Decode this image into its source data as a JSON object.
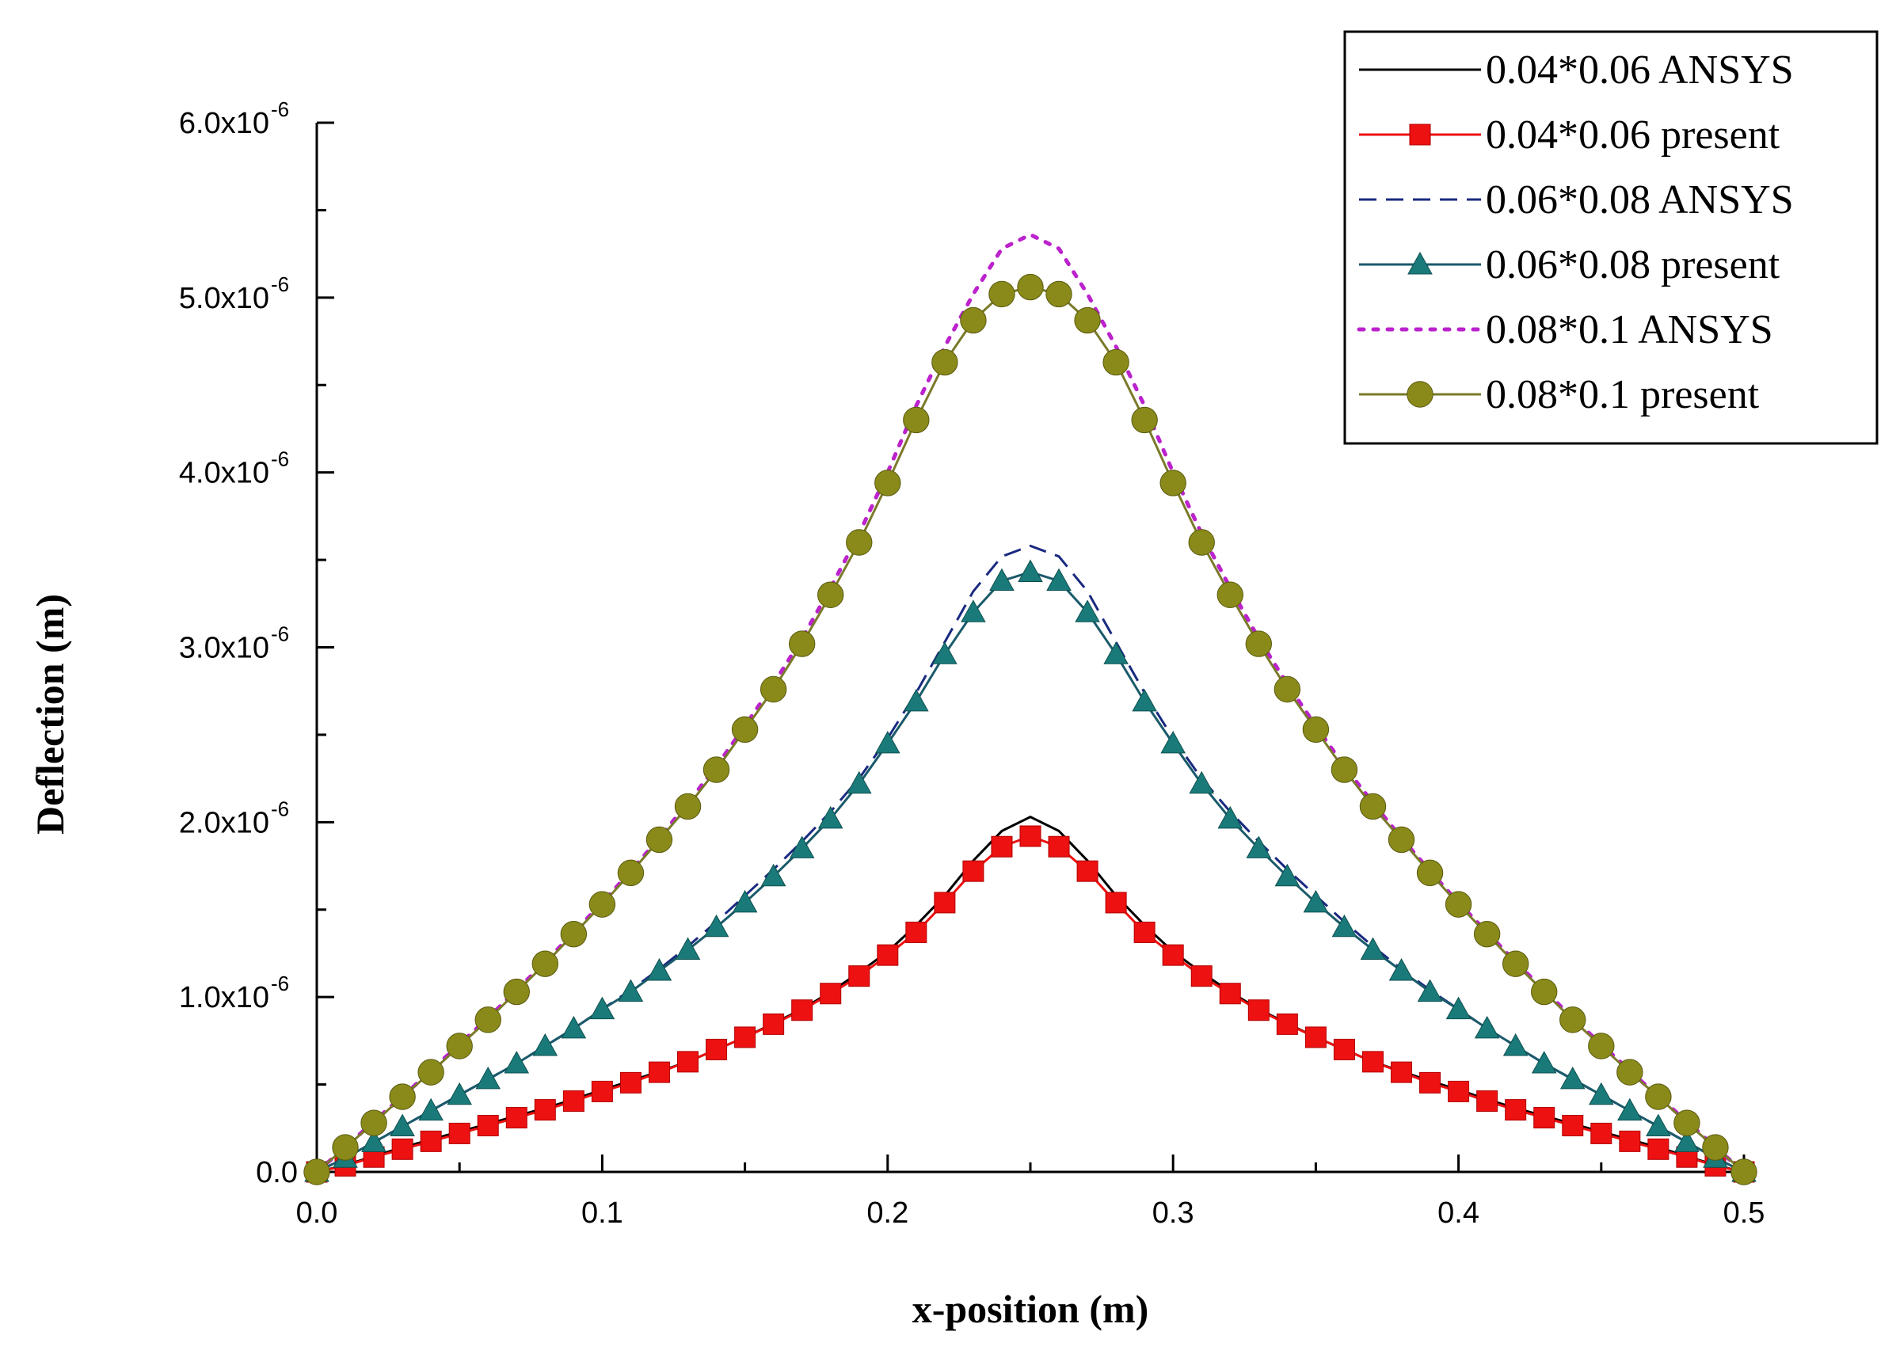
{
  "chart_data": {
    "type": "line",
    "title": "",
    "xlabel": "x-position (m)",
    "ylabel": "Deflection (m)",
    "xlim": [
      0.0,
      0.5
    ],
    "ylim": [
      0.0,
      6e-06
    ],
    "x_ticks": [
      {
        "value": 0.0,
        "label": "0.0"
      },
      {
        "value": 0.1,
        "label": "0.1"
      },
      {
        "value": 0.2,
        "label": "0.2"
      },
      {
        "value": 0.3,
        "label": "0.3"
      },
      {
        "value": 0.4,
        "label": "0.4"
      },
      {
        "value": 0.5,
        "label": "0.5"
      }
    ],
    "y_ticks": [
      {
        "value": 0.0,
        "mantissa": "0.0",
        "exp": ""
      },
      {
        "value": 1e-06,
        "mantissa": "1.0x10",
        "exp": "-6"
      },
      {
        "value": 2e-06,
        "mantissa": "2.0x10",
        "exp": "-6"
      },
      {
        "value": 3e-06,
        "mantissa": "3.0x10",
        "exp": "-6"
      },
      {
        "value": 4e-06,
        "mantissa": "4.0x10",
        "exp": "-6"
      },
      {
        "value": 5e-06,
        "mantissa": "5.0x10",
        "exp": "-6"
      },
      {
        "value": 6e-06,
        "mantissa": "6.0x10",
        "exp": "-6"
      }
    ],
    "grid": false,
    "legend_position": "top-right",
    "series": [
      {
        "name": "0.04*0.06 ANSYS",
        "style": {
          "line": "solid",
          "marker": "none",
          "color": "#000000"
        },
        "x": [
          0.0,
          0.01,
          0.02,
          0.03,
          0.04,
          0.05,
          0.06,
          0.07,
          0.08,
          0.09,
          0.1,
          0.11,
          0.12,
          0.13,
          0.14,
          0.15,
          0.16,
          0.17,
          0.18,
          0.19,
          0.2,
          0.21,
          0.22,
          0.23,
          0.24,
          0.25,
          0.26,
          0.27,
          0.28,
          0.29,
          0.3,
          0.31,
          0.32,
          0.33,
          0.34,
          0.35,
          0.36,
          0.37,
          0.38,
          0.39,
          0.4,
          0.41,
          0.42,
          0.43,
          0.44,
          0.45,
          0.46,
          0.47,
          0.48,
          0.49,
          0.5
        ],
        "y": [
          0,
          3.8e-08,
          9e-08,
          1.4e-07,
          1.85e-07,
          2.3e-07,
          2.75e-07,
          3.2e-07,
          3.65e-07,
          4.15e-07,
          4.7e-07,
          5.2e-07,
          5.75e-07,
          6.3e-07,
          7e-07,
          7.7e-07,
          8.5e-07,
          9.3e-07,
          1.03e-06,
          1.14e-06,
          1.26e-06,
          1.41e-06,
          1.58e-06,
          1.78e-06,
          1.95e-06,
          2.03e-06,
          1.95e-06,
          1.78e-06,
          1.58e-06,
          1.41e-06,
          1.26e-06,
          1.14e-06,
          1.03e-06,
          9.3e-07,
          8.5e-07,
          7.7e-07,
          7e-07,
          6.3e-07,
          5.75e-07,
          5.2e-07,
          4.7e-07,
          4.15e-07,
          3.65e-07,
          3.2e-07,
          2.75e-07,
          2.3e-07,
          1.85e-07,
          1.4e-07,
          9e-08,
          3.8e-08,
          0
        ]
      },
      {
        "name": "0.04*0.06 present",
        "style": {
          "line": "solid",
          "marker": "square",
          "color": "#ee1111",
          "line_color": "#ee1111"
        },
        "x": [
          0.0,
          0.01,
          0.02,
          0.03,
          0.04,
          0.05,
          0.06,
          0.07,
          0.08,
          0.09,
          0.1,
          0.11,
          0.12,
          0.13,
          0.14,
          0.15,
          0.16,
          0.17,
          0.18,
          0.19,
          0.2,
          0.21,
          0.22,
          0.23,
          0.24,
          0.25,
          0.26,
          0.27,
          0.28,
          0.29,
          0.3,
          0.31,
          0.32,
          0.33,
          0.34,
          0.35,
          0.36,
          0.37,
          0.38,
          0.39,
          0.4,
          0.41,
          0.42,
          0.43,
          0.44,
          0.45,
          0.46,
          0.47,
          0.48,
          0.49,
          0.5
        ],
        "y": [
          0,
          3.5e-08,
          8.5e-08,
          1.3e-07,
          1.75e-07,
          2.2e-07,
          2.65e-07,
          3.1e-07,
          3.55e-07,
          4.05e-07,
          4.6e-07,
          5.1e-07,
          5.7e-07,
          6.3e-07,
          7e-07,
          7.7e-07,
          8.45e-07,
          9.25e-07,
          1.02e-06,
          1.12e-06,
          1.24e-06,
          1.37e-06,
          1.54e-06,
          1.72e-06,
          1.86e-06,
          1.92e-06,
          1.86e-06,
          1.72e-06,
          1.54e-06,
          1.37e-06,
          1.24e-06,
          1.12e-06,
          1.02e-06,
          9.25e-07,
          8.45e-07,
          7.7e-07,
          7e-07,
          6.3e-07,
          5.7e-07,
          5.1e-07,
          4.6e-07,
          4.05e-07,
          3.55e-07,
          3.1e-07,
          2.65e-07,
          2.2e-07,
          1.75e-07,
          1.3e-07,
          8.5e-08,
          3.5e-08,
          0
        ]
      },
      {
        "name": "0.06*0.08 ANSYS",
        "style": {
          "line": "dashed",
          "marker": "none",
          "color": "#1a2a80"
        },
        "x": [
          0.0,
          0.01,
          0.02,
          0.03,
          0.04,
          0.05,
          0.06,
          0.07,
          0.08,
          0.09,
          0.1,
          0.11,
          0.12,
          0.13,
          0.14,
          0.15,
          0.16,
          0.17,
          0.18,
          0.19,
          0.2,
          0.21,
          0.22,
          0.23,
          0.24,
          0.25,
          0.26,
          0.27,
          0.28,
          0.29,
          0.3,
          0.31,
          0.32,
          0.33,
          0.34,
          0.35,
          0.36,
          0.37,
          0.38,
          0.39,
          0.4,
          0.41,
          0.42,
          0.43,
          0.44,
          0.45,
          0.46,
          0.47,
          0.48,
          0.49,
          0.5
        ],
        "y": [
          0,
          8e-08,
          1.7e-07,
          2.6e-07,
          3.5e-07,
          4.4e-07,
          5.3e-07,
          6.2e-07,
          7.2e-07,
          8.2e-07,
          9.3e-07,
          1.04e-06,
          1.16e-06,
          1.29e-06,
          1.43e-06,
          1.58e-06,
          1.73e-06,
          1.89e-06,
          2.06e-06,
          2.25e-06,
          2.48e-06,
          2.74e-06,
          3.03e-06,
          3.32e-06,
          3.52e-06,
          3.58e-06,
          3.52e-06,
          3.32e-06,
          3.03e-06,
          2.74e-06,
          2.48e-06,
          2.25e-06,
          2.06e-06,
          1.89e-06,
          1.73e-06,
          1.58e-06,
          1.43e-06,
          1.29e-06,
          1.16e-06,
          1.04e-06,
          9.3e-07,
          8.2e-07,
          7.2e-07,
          6.2e-07,
          5.3e-07,
          4.4e-07,
          3.5e-07,
          2.6e-07,
          1.7e-07,
          8e-08,
          0
        ]
      },
      {
        "name": "0.06*0.08 present",
        "style": {
          "line": "solid",
          "marker": "triangle",
          "color": "#1a7a7a",
          "line_color": "#1a5a6a"
        },
        "x": [
          0.0,
          0.01,
          0.02,
          0.03,
          0.04,
          0.05,
          0.06,
          0.07,
          0.08,
          0.09,
          0.1,
          0.11,
          0.12,
          0.13,
          0.14,
          0.15,
          0.16,
          0.17,
          0.18,
          0.19,
          0.2,
          0.21,
          0.22,
          0.23,
          0.24,
          0.25,
          0.26,
          0.27,
          0.28,
          0.29,
          0.3,
          0.31,
          0.32,
          0.33,
          0.34,
          0.35,
          0.36,
          0.37,
          0.38,
          0.39,
          0.4,
          0.41,
          0.42,
          0.43,
          0.44,
          0.45,
          0.46,
          0.47,
          0.48,
          0.49,
          0.5
        ],
        "y": [
          0,
          8e-08,
          1.7e-07,
          2.6e-07,
          3.5e-07,
          4.4e-07,
          5.3e-07,
          6.2e-07,
          7.2e-07,
          8.2e-07,
          9.3e-07,
          1.03e-06,
          1.15e-06,
          1.27e-06,
          1.4e-06,
          1.54e-06,
          1.69e-06,
          1.85e-06,
          2.02e-06,
          2.22e-06,
          2.45e-06,
          2.69e-06,
          2.96e-06,
          3.2e-06,
          3.38e-06,
          3.43e-06,
          3.38e-06,
          3.2e-06,
          2.96e-06,
          2.69e-06,
          2.45e-06,
          2.22e-06,
          2.02e-06,
          1.85e-06,
          1.69e-06,
          1.54e-06,
          1.4e-06,
          1.27e-06,
          1.15e-06,
          1.03e-06,
          9.3e-07,
          8.2e-07,
          7.2e-07,
          6.2e-07,
          5.3e-07,
          4.4e-07,
          3.5e-07,
          2.6e-07,
          1.7e-07,
          8e-08,
          0
        ]
      },
      {
        "name": "0.08*0.1 ANSYS",
        "style": {
          "line": "dotted",
          "marker": "none",
          "color": "#bb22cc"
        },
        "x": [
          0.0,
          0.01,
          0.02,
          0.03,
          0.04,
          0.05,
          0.06,
          0.07,
          0.08,
          0.09,
          0.1,
          0.11,
          0.12,
          0.13,
          0.14,
          0.15,
          0.16,
          0.17,
          0.18,
          0.19,
          0.2,
          0.21,
          0.22,
          0.23,
          0.24,
          0.25,
          0.26,
          0.27,
          0.28,
          0.29,
          0.3,
          0.31,
          0.32,
          0.33,
          0.34,
          0.35,
          0.36,
          0.37,
          0.38,
          0.39,
          0.4,
          0.41,
          0.42,
          0.43,
          0.44,
          0.45,
          0.46,
          0.47,
          0.48,
          0.49,
          0.5
        ],
        "y": [
          0,
          1.4e-07,
          2.9e-07,
          4.3e-07,
          5.8e-07,
          7.3e-07,
          8.8e-07,
          1.04e-06,
          1.2e-06,
          1.37e-06,
          1.54e-06,
          1.72e-06,
          1.91e-06,
          2.11e-06,
          2.32e-06,
          2.55e-06,
          2.79e-06,
          3.05e-06,
          3.34e-06,
          3.65e-06,
          4e-06,
          4.38e-06,
          4.72e-06,
          5.02e-06,
          5.28e-06,
          5.36e-06,
          5.28e-06,
          5.02e-06,
          4.72e-06,
          4.38e-06,
          4e-06,
          3.65e-06,
          3.34e-06,
          3.05e-06,
          2.79e-06,
          2.55e-06,
          2.32e-06,
          2.11e-06,
          1.91e-06,
          1.72e-06,
          1.54e-06,
          1.37e-06,
          1.2e-06,
          1.04e-06,
          8.8e-07,
          7.3e-07,
          5.8e-07,
          4.3e-07,
          2.9e-07,
          1.4e-07,
          0
        ]
      },
      {
        "name": "0.08*0.1 present",
        "style": {
          "line": "solid",
          "marker": "circle",
          "color": "#8a8a1a",
          "line_color": "#7a7a2a"
        },
        "x": [
          0.0,
          0.01,
          0.02,
          0.03,
          0.04,
          0.05,
          0.06,
          0.07,
          0.08,
          0.09,
          0.1,
          0.11,
          0.12,
          0.13,
          0.14,
          0.15,
          0.16,
          0.17,
          0.18,
          0.19,
          0.2,
          0.21,
          0.22,
          0.23,
          0.24,
          0.25,
          0.26,
          0.27,
          0.28,
          0.29,
          0.3,
          0.31,
          0.32,
          0.33,
          0.34,
          0.35,
          0.36,
          0.37,
          0.38,
          0.39,
          0.4,
          0.41,
          0.42,
          0.43,
          0.44,
          0.45,
          0.46,
          0.47,
          0.48,
          0.49,
          0.5
        ],
        "y": [
          0,
          1.4e-07,
          2.8e-07,
          4.3e-07,
          5.7e-07,
          7.2e-07,
          8.7e-07,
          1.03e-06,
          1.19e-06,
          1.36e-06,
          1.53e-06,
          1.71e-06,
          1.9e-06,
          2.09e-06,
          2.3e-06,
          2.53e-06,
          2.76e-06,
          3.02e-06,
          3.3e-06,
          3.6e-06,
          3.94e-06,
          4.3e-06,
          4.63e-06,
          4.87e-06,
          5.02e-06,
          5.06e-06,
          5.02e-06,
          4.87e-06,
          4.63e-06,
          4.3e-06,
          3.94e-06,
          3.6e-06,
          3.3e-06,
          3.02e-06,
          2.76e-06,
          2.53e-06,
          2.3e-06,
          2.09e-06,
          1.9e-06,
          1.71e-06,
          1.53e-06,
          1.36e-06,
          1.19e-06,
          1.03e-06,
          8.7e-07,
          7.2e-07,
          5.7e-07,
          4.3e-07,
          2.8e-07,
          1.4e-07,
          0
        ]
      }
    ]
  }
}
